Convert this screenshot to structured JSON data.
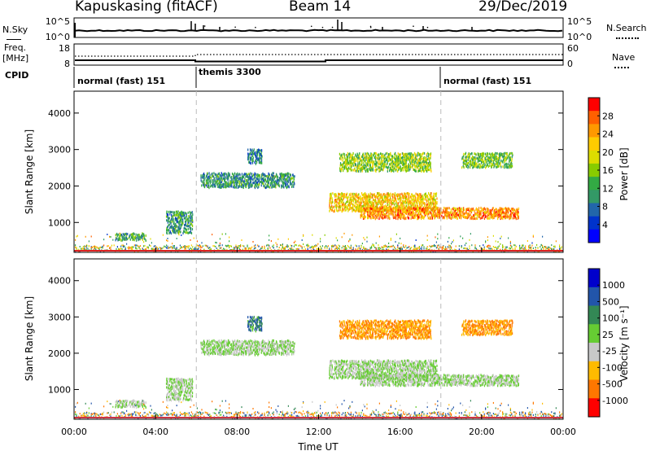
{
  "header": {
    "station": "Kapuskasing (fitACF)",
    "beam": "Beam 14",
    "date": "29/Dec/2019"
  },
  "left_labels": {
    "nsky": "N.Sky",
    "freq_line1": "Freq.",
    "freq_line2": "[MHz]",
    "cpid": "CPID"
  },
  "right_labels": {
    "nsearch": "N.Search",
    "nave": "Nave"
  },
  "noise_panel": {
    "y_tick_top": "10^5",
    "y_tick_bottom": "10^0",
    "r_tick_top": "10^5",
    "r_tick_bottom": "10^0"
  },
  "freq_panel": {
    "y_ticks": [
      "18",
      "8"
    ],
    "r_ticks": [
      "60",
      "0"
    ]
  },
  "cpid_segments": [
    {
      "label": "normal (fast) 151",
      "start_h": 0,
      "end_h": 6
    },
    {
      "label": "themis 3300",
      "start_h": 6,
      "end_h": 18
    },
    {
      "label": "normal (fast) 151",
      "start_h": 18,
      "end_h": 24
    }
  ],
  "power_panel": {
    "ylabel": "Slant Range [km]",
    "colorbar_label": "Power [dB]",
    "colorbar_ticks": [
      "28",
      "24",
      "20",
      "16",
      "12",
      "8",
      "4"
    ],
    "colors": [
      "#ff0000",
      "#ff6000",
      "#ff9900",
      "#ffcc00",
      "#dddd00",
      "#88cc00",
      "#33aa44",
      "#339966",
      "#2266aa",
      "#0033cc",
      "#0000ff"
    ]
  },
  "velocity_panel": {
    "ylabel": "Slant Range [km]",
    "colorbar_label": "Velocity [m s⁻¹]",
    "colorbar_ticks": [
      "1000",
      "500",
      "100",
      "25",
      "-25",
      "-100",
      "-500",
      "-1000"
    ],
    "colors": [
      "#0000cc",
      "#2255aa",
      "#338855",
      "#66cc33",
      "#c8c8c8",
      "#ffbb00",
      "#ff7700",
      "#ff0000"
    ]
  },
  "chart_data": {
    "type": "heatmap",
    "xlabel": "Time UT",
    "x_ticks": [
      "00:00",
      "04:00",
      "08:00",
      "12:00",
      "16:00",
      "20:00",
      "00:00"
    ],
    "xlim_hours": [
      0,
      24
    ],
    "y_ticks": [
      1000,
      2000,
      3000,
      4000
    ],
    "ylim_km": [
      180,
      4600
    ],
    "mode_boundaries_h": [
      6,
      18
    ],
    "echo_regions": [
      {
        "t_start_h": 2.0,
        "t_end_h": 3.5,
        "range_start_km": 500,
        "range_end_km": 700,
        "power_db": 12,
        "velocity": 25
      },
      {
        "t_start_h": 4.5,
        "t_end_h": 5.8,
        "range_start_km": 700,
        "range_end_km": 1300,
        "power_db": 10,
        "velocity": 25
      },
      {
        "t_start_h": 6.2,
        "t_end_h": 10.8,
        "range_start_km": 1950,
        "range_end_km": 2350,
        "power_db": 10,
        "velocity": 25
      },
      {
        "t_start_h": 8.5,
        "t_end_h": 9.2,
        "range_start_km": 2600,
        "range_end_km": 3000,
        "power_db": 8,
        "velocity": 100
      },
      {
        "t_start_h": 12.5,
        "t_end_h": 17.8,
        "range_start_km": 1300,
        "range_end_km": 1800,
        "power_db": 22,
        "velocity": 25
      },
      {
        "t_start_h": 14.0,
        "t_end_h": 21.8,
        "range_start_km": 1100,
        "range_end_km": 1400,
        "power_db": 26,
        "velocity": 25
      },
      {
        "t_start_h": 13.0,
        "t_end_h": 17.5,
        "range_start_km": 2400,
        "range_end_km": 2900,
        "power_db": 16,
        "velocity": -100
      },
      {
        "t_start_h": 19.0,
        "t_end_h": 21.5,
        "range_start_km": 2500,
        "range_end_km": 2900,
        "power_db": 14,
        "velocity": -100
      }
    ]
  }
}
